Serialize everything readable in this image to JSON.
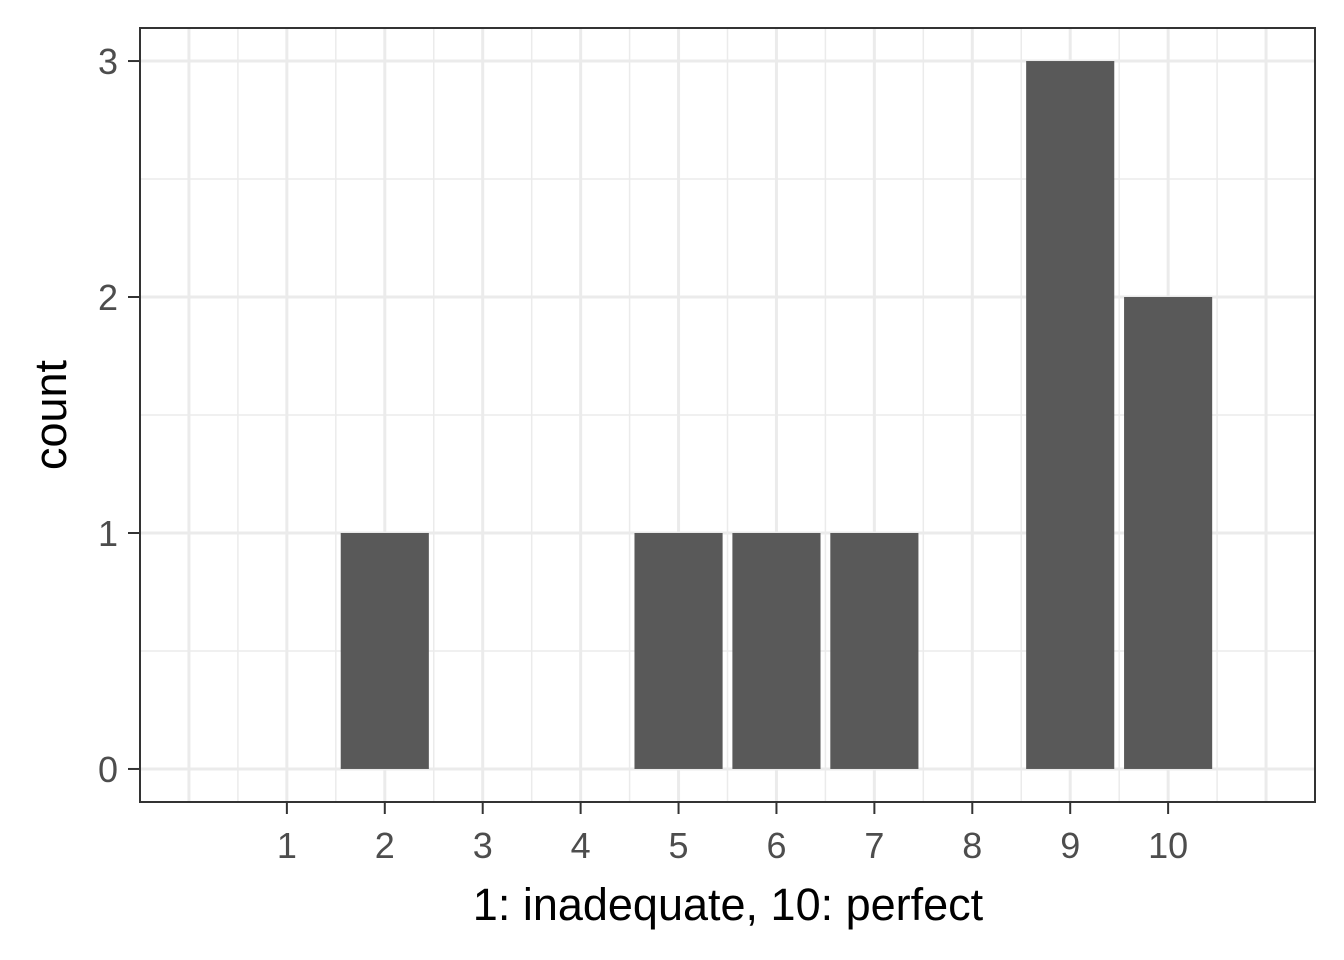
{
  "chart_data": {
    "type": "bar",
    "title": "",
    "xlabel": "1: inadequate, 10: perfect",
    "ylabel": "count",
    "categories": [
      "1",
      "2",
      "3",
      "4",
      "5",
      "6",
      "7",
      "8",
      "9",
      "10"
    ],
    "values": [
      0,
      1,
      0,
      0,
      1,
      1,
      1,
      0,
      3,
      2
    ],
    "x_ticks": [
      "1",
      "2",
      "3",
      "4",
      "5",
      "6",
      "7",
      "8",
      "9",
      "10"
    ],
    "y_ticks": [
      "0",
      "1",
      "2",
      "3"
    ],
    "xlim": [
      -0.5,
      11.5
    ],
    "ylim": [
      -0.14,
      3.14
    ],
    "grid": true,
    "legend": "none",
    "colors": {
      "bar": "#595959",
      "grid": "#ebebeb",
      "panel_border": "#333333",
      "tick_label": "#4d4d4d"
    }
  }
}
